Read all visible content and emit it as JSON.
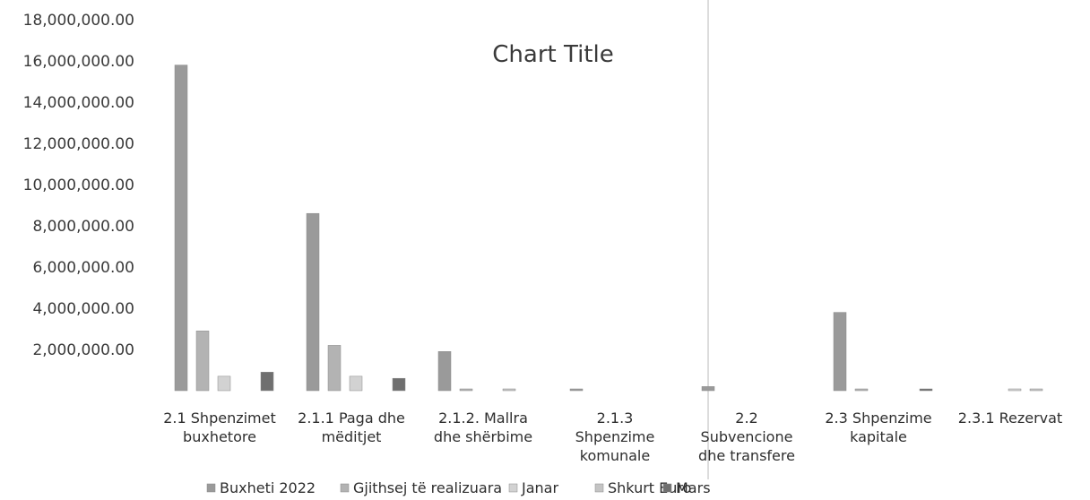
{
  "chart_data": {
    "type": "bar",
    "title": "Chart Title",
    "categories": [
      [
        "2.1 Shpenzimet",
        "buxhetore"
      ],
      [
        "2.1.1 Paga dhe",
        "mëditjet"
      ],
      [
        "2.1.2. Mallra",
        "dhe shërbime"
      ],
      [
        "2.1.3",
        "Shpenzime",
        "komunale"
      ],
      [
        "2.2",
        "Subvencione",
        "dhe transfere"
      ],
      [
        "2.3 Shpenzime",
        "kapitale"
      ],
      [
        "2.3.1 Rezervat"
      ]
    ],
    "series": [
      {
        "name": "Buxheti 2022",
        "color": "#9a9a9a",
        "values": [
          15800000,
          8600000,
          1900000,
          70000,
          200000,
          3800000,
          0
        ]
      },
      {
        "name": "Gjithsej të realizuara",
        "color": "#b3b3b3",
        "values": [
          2900000,
          2200000,
          50000,
          0,
          0,
          80000,
          0
        ]
      },
      {
        "name": "Janar",
        "color": "#d2d2d2",
        "values": [
          700000,
          700000,
          0,
          0,
          0,
          0,
          40000
        ]
      },
      {
        "name": "Shkurt Euro",
        "color": "#c4c4c4",
        "values": [
          0,
          0,
          40000,
          0,
          0,
          0,
          60000
        ]
      },
      {
        "name": "Mars",
        "color": "#6f6f6f",
        "values": [
          900000,
          600000,
          0,
          0,
          0,
          30000,
          0
        ]
      }
    ],
    "ylim": [
      0,
      18000000
    ],
    "ticks": [
      "",
      "2,000,000.00",
      "4,000,000.00",
      "6,000,000.00",
      "8,000,000.00",
      "10,000,000.00",
      "12,000,000.00",
      "14,000,000.00",
      "16,000,000.00",
      "18,000,000.00"
    ],
    "grid": false,
    "legend": "bottom"
  }
}
